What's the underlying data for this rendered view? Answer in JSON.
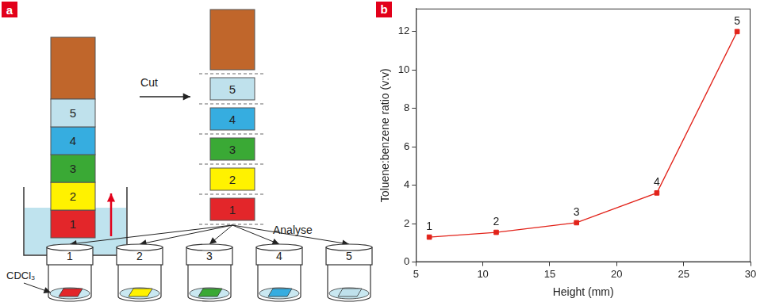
{
  "panel_labels": [
    "a",
    "b"
  ],
  "diagram": {
    "cut_label": "Cut",
    "analyse_label": "Analyse",
    "solvent_label": "CDCl₃",
    "top_color": "#c0662b",
    "strip_segments": [
      {
        "label": "1",
        "color": "#e3262a"
      },
      {
        "label": "2",
        "color": "#fff200"
      },
      {
        "label": "3",
        "color": "#3aa935"
      },
      {
        "label": "4",
        "color": "#36ade0"
      },
      {
        "label": "5",
        "color": "#bfe1ec"
      }
    ],
    "vials": [
      "1",
      "2",
      "3",
      "4",
      "5"
    ]
  },
  "chart_data": {
    "type": "line",
    "x": [
      6,
      11,
      17,
      23,
      29
    ],
    "values": [
      1.3,
      1.55,
      2.05,
      3.6,
      12
    ],
    "point_labels": [
      "1",
      "2",
      "3",
      "4",
      "5"
    ],
    "x_label": "Height (mm)",
    "y_label": "Toluene:benzene ratio (v:v)",
    "xlim": [
      5,
      30
    ],
    "xticks": [
      5,
      10,
      15,
      20,
      25,
      30
    ],
    "ylim": [
      0,
      13.2
    ],
    "yticks": [
      0,
      2,
      4,
      6,
      8,
      10,
      12
    ],
    "grid": false,
    "color": "#e2231a",
    "marker": "square",
    "line_style": "solid"
  }
}
